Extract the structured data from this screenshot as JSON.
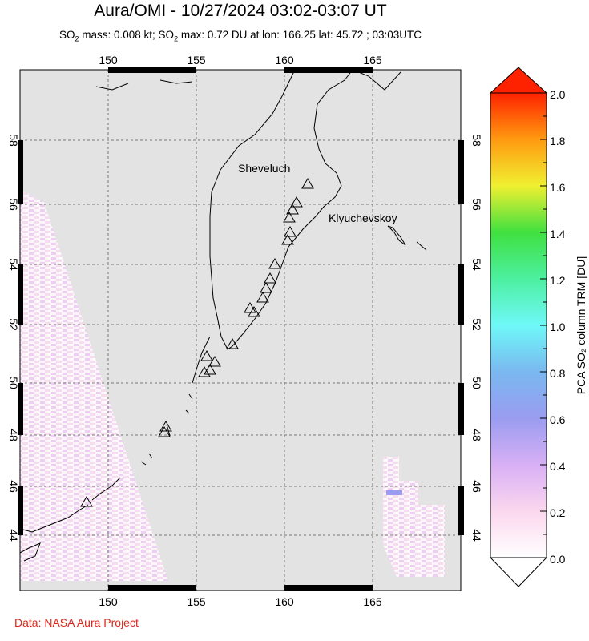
{
  "title": "Aura/OMI - 10/27/2024 03:02-03:07 UT",
  "subtitle": {
    "p1": "SO",
    "p2": " mass: 0.008 kt; SO",
    "p3": " max: 0.72 DU at lon: 166.25 lat: 45.72 ; 03:03UTC",
    "sub": "2"
  },
  "credit": "Data: NASA Aura Project",
  "map": {
    "lon_ticks": [
      "150",
      "155",
      "160",
      "165"
    ],
    "lat_ticks": [
      "58",
      "56",
      "54",
      "52",
      "50",
      "48",
      "46",
      "44"
    ],
    "volcano_labels": [
      "Sheveluch",
      "Klyuchevskoy"
    ],
    "background_color": "#e3e3e3",
    "coastline_color": "#000000",
    "volcano_icon": "triangle-outline"
  },
  "colorbar": {
    "label": "PCA SO₂ column TRM [DU]",
    "ticks": [
      "2.0",
      "1.8",
      "1.6",
      "1.4",
      "1.2",
      "1.0",
      "0.8",
      "0.6",
      "0.4",
      "0.2",
      "0.0"
    ],
    "range": [
      0,
      2
    ],
    "colors": [
      "#ffffff",
      "#fbd7ee",
      "#d8b0f5",
      "#9a9cf0",
      "#7ab8f0",
      "#6ff8f8",
      "#4cf0a0",
      "#40e040",
      "#f0f030",
      "#ff9a10",
      "#ff2200"
    ]
  }
}
